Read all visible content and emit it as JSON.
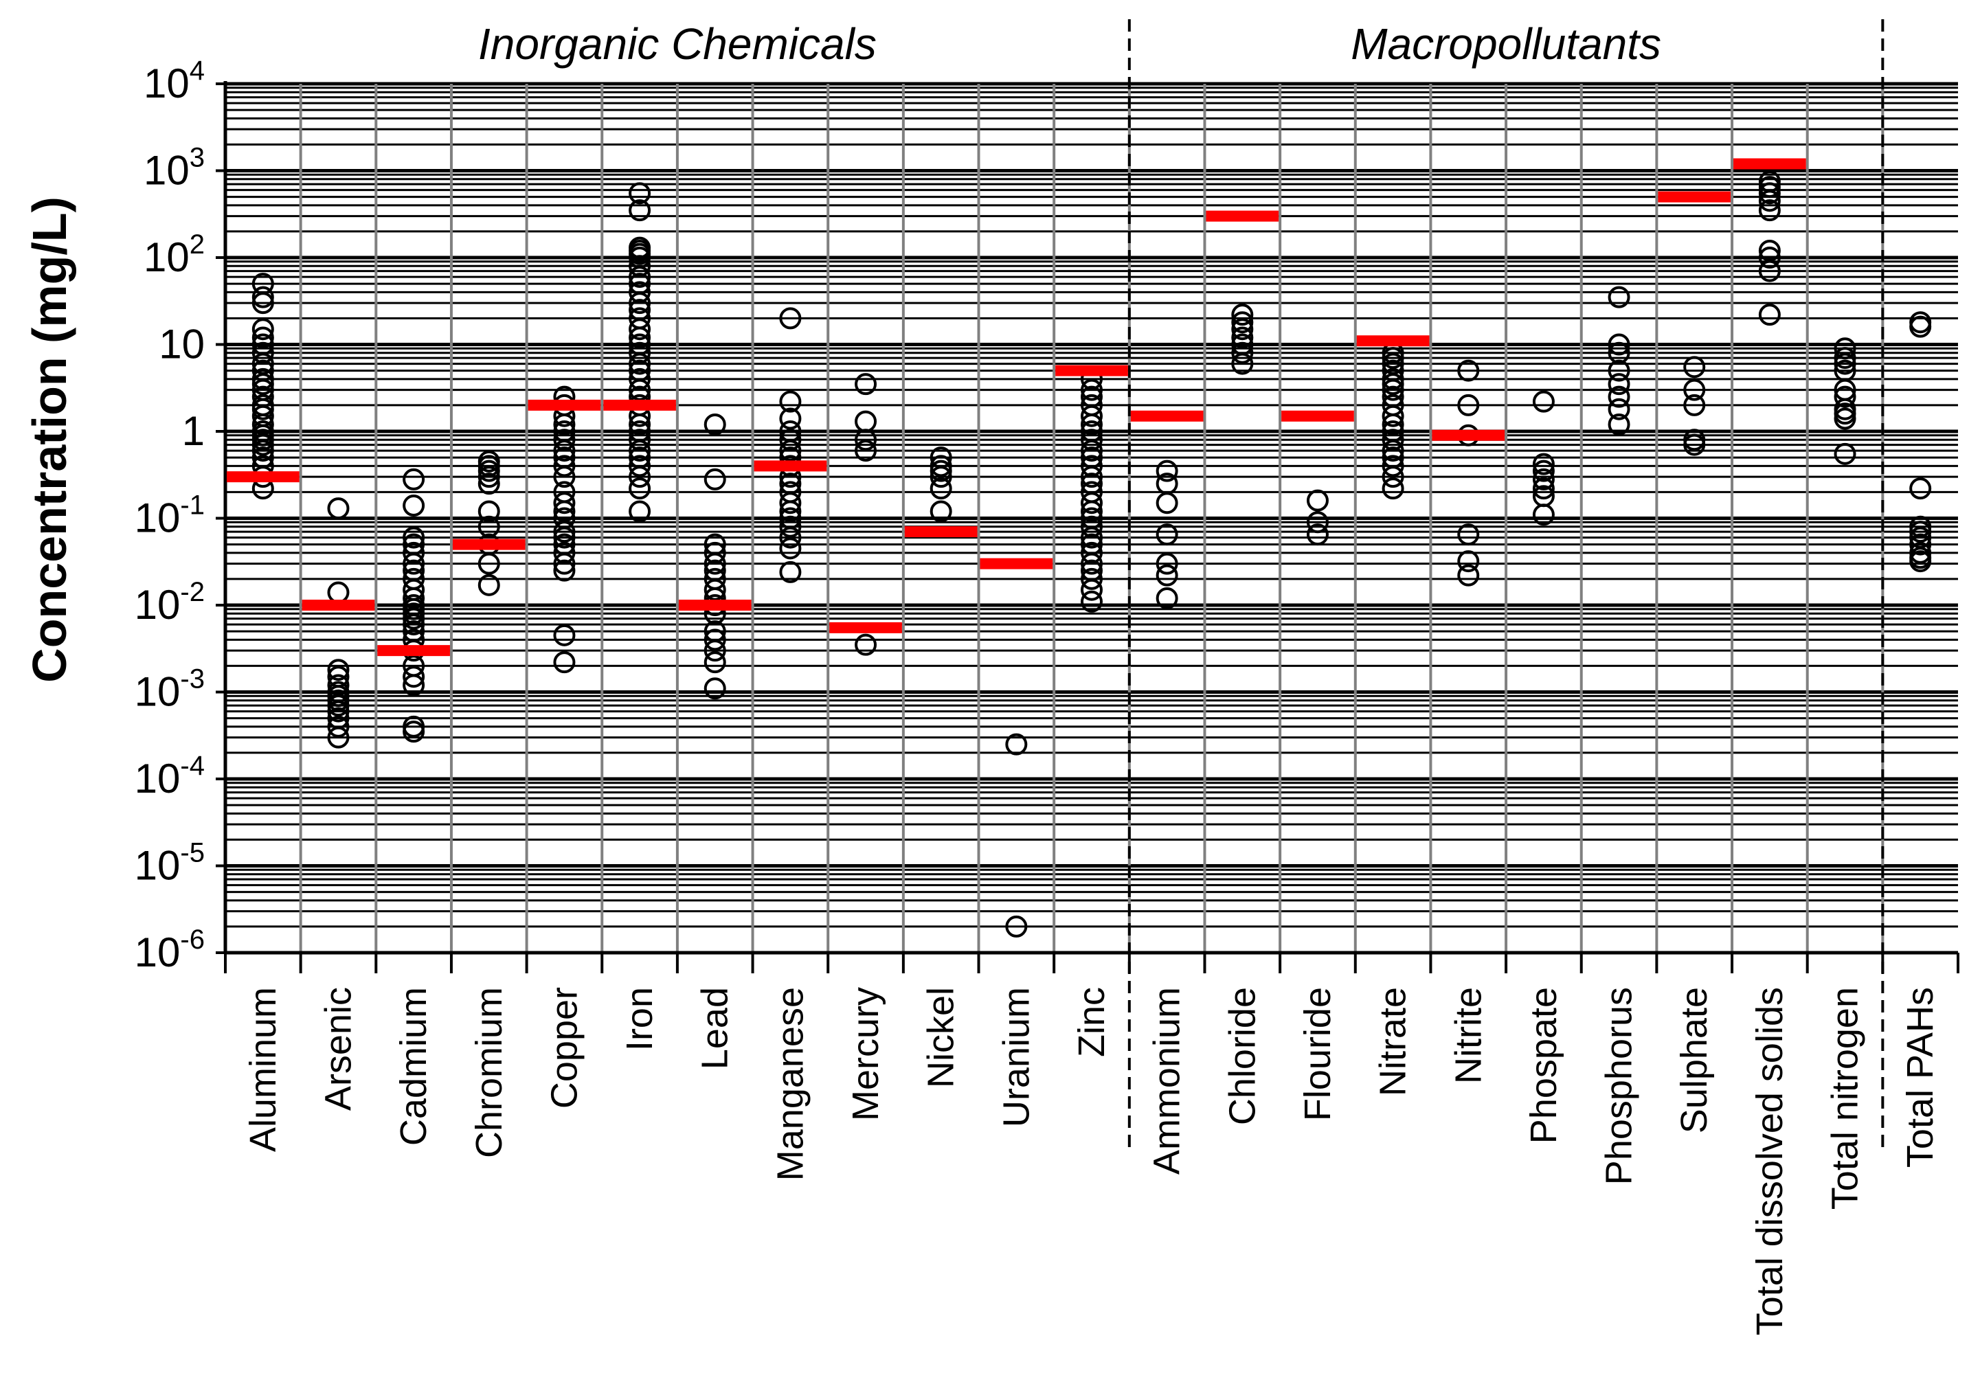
{
  "chart_data": {
    "type": "scatter",
    "yscale": "log",
    "ylabel": "Concentration (mg/L)",
    "ylim": [
      1e-06,
      10000
    ],
    "grid": true,
    "groups": [
      {
        "title": "Inorganic Chemicals",
        "from": 0,
        "to": 11
      },
      {
        "title": "Macropollutants",
        "from": 12,
        "to": 21
      },
      {
        "title": "",
        "from": 22,
        "to": 22
      }
    ],
    "y_ticks": [
      {
        "base": "10",
        "exp": "4",
        "value": 10000
      },
      {
        "base": "10",
        "exp": "3",
        "value": 1000
      },
      {
        "base": "10",
        "exp": "2",
        "value": 100
      },
      {
        "base": "10",
        "exp": "",
        "value": 10
      },
      {
        "base": "1",
        "exp": "",
        "value": 1
      },
      {
        "base": "10",
        "exp": "-1",
        "value": 0.1
      },
      {
        "base": "10",
        "exp": "-2",
        "value": 0.01
      },
      {
        "base": "10",
        "exp": "-3",
        "value": 0.001
      },
      {
        "base": "10",
        "exp": "-4",
        "value": 0.0001
      },
      {
        "base": "10",
        "exp": "-5",
        "value": 1e-05
      },
      {
        "base": "10",
        "exp": "-6",
        "value": 1e-06
      }
    ],
    "categories": [
      "Aluminum",
      "Arsenic",
      "Cadmium",
      "Chromium",
      "Copper",
      "Iron",
      "Lead",
      "Manganese",
      "Mercury",
      "Nickel",
      "Uranium",
      "Zinc",
      "Ammonium",
      "Chloride",
      "Flouride",
      "Nitrate",
      "Nitrite",
      "Phospate",
      "Phosphorus",
      "Sulphate",
      "Total dissolved solids",
      "Total nitrogen",
      "Total PAHs"
    ],
    "guideline_values": [
      0.3,
      0.01,
      0.003,
      0.05,
      2,
      2,
      0.01,
      0.4,
      0.0055,
      0.07,
      0.03,
      5,
      1.5,
      300,
      1.5,
      11,
      0.9,
      null,
      null,
      500,
      1200,
      null,
      null
    ],
    "observations": [
      [
        0.22,
        0.3,
        0.4,
        0.5,
        0.6,
        0.7,
        0.8,
        0.9,
        1,
        1.2,
        1.5,
        1.8,
        2,
        2.5,
        3,
        3.5,
        4,
        5,
        6,
        8,
        10,
        12,
        15,
        30,
        35,
        50
      ],
      [
        0.0003,
        0.0004,
        0.0005,
        0.0006,
        0.0007,
        0.0008,
        0.0009,
        0.001,
        0.0012,
        0.0015,
        0.0018,
        0.014,
        0.13
      ],
      [
        0.00035,
        0.0004,
        0.0012,
        0.0015,
        0.002,
        0.003,
        0.004,
        0.005,
        0.006,
        0.007,
        0.008,
        0.009,
        0.01,
        0.012,
        0.015,
        0.02,
        0.025,
        0.03,
        0.04,
        0.05,
        0.06,
        0.14,
        0.28
      ],
      [
        0.017,
        0.03,
        0.05,
        0.08,
        0.12,
        0.25,
        0.3,
        0.35,
        0.4,
        0.45
      ],
      [
        0.0022,
        0.0045,
        0.025,
        0.03,
        0.04,
        0.05,
        0.06,
        0.07,
        0.1,
        0.12,
        0.15,
        0.2,
        0.3,
        0.4,
        0.5,
        0.6,
        0.8,
        1,
        1.2,
        1.5,
        2,
        2.5
      ],
      [
        0.12,
        0.22,
        0.3,
        0.4,
        0.5,
        0.6,
        0.8,
        1,
        1.2,
        1.5,
        2,
        2.5,
        3,
        4,
        5,
        6,
        8,
        10,
        12,
        15,
        20,
        25,
        30,
        40,
        50,
        60,
        80,
        100,
        110,
        120,
        130,
        350,
        550
      ],
      [
        0.0011,
        0.0022,
        0.003,
        0.004,
        0.005,
        0.008,
        0.01,
        0.012,
        0.015,
        0.02,
        0.025,
        0.03,
        0.04,
        0.05,
        0.28,
        1.2
      ],
      [
        0.024,
        0.045,
        0.06,
        0.08,
        0.1,
        0.12,
        0.15,
        0.2,
        0.25,
        0.3,
        0.4,
        0.5,
        0.6,
        0.8,
        1,
        1.4,
        2.2,
        20
      ],
      [
        0.0035,
        0.6,
        0.8,
        1.3,
        3.5
      ],
      [
        0.12,
        0.22,
        0.3,
        0.35,
        0.4,
        0.5
      ],
      [
        2e-06,
        0.00025
      ],
      [
        0.011,
        0.015,
        0.02,
        0.025,
        0.03,
        0.04,
        0.05,
        0.06,
        0.08,
        0.1,
        0.12,
        0.15,
        0.2,
        0.25,
        0.3,
        0.4,
        0.5,
        0.6,
        0.8,
        1,
        1.2,
        1.5,
        2,
        2.5,
        3,
        4
      ],
      [
        0.012,
        0.022,
        0.03,
        0.065,
        0.15,
        0.25,
        0.35
      ],
      [
        6,
        8,
        10,
        12,
        15,
        18,
        22
      ],
      [
        0.065,
        0.09,
        0.16
      ],
      [
        0.22,
        0.3,
        0.4,
        0.5,
        0.6,
        0.8,
        1,
        1.2,
        1.5,
        2,
        2.5,
        3,
        3.5,
        4,
        5,
        6,
        7,
        8
      ],
      [
        0.022,
        0.032,
        0.065,
        0.9,
        2,
        5
      ],
      [
        0.11,
        0.18,
        0.22,
        0.28,
        0.35,
        0.42,
        2.2
      ],
      [
        1.2,
        1.8,
        2.5,
        3.5,
        5,
        8,
        10,
        35
      ],
      [
        0.7,
        0.8,
        2,
        3,
        5.5
      ],
      [
        22,
        70,
        100,
        120,
        350,
        450,
        550,
        650,
        750
      ],
      [
        0.55,
        1.4,
        1.6,
        1.8,
        2.5,
        3,
        5,
        6,
        7,
        9
      ],
      [
        0.032,
        0.035,
        0.04,
        0.05,
        0.06,
        0.07,
        0.08,
        0.22,
        16,
        18
      ]
    ],
    "colors": {
      "guideline": "#ff0000",
      "marker": "#000000",
      "grid": "#000000",
      "category_divider": "#808080"
    }
  }
}
